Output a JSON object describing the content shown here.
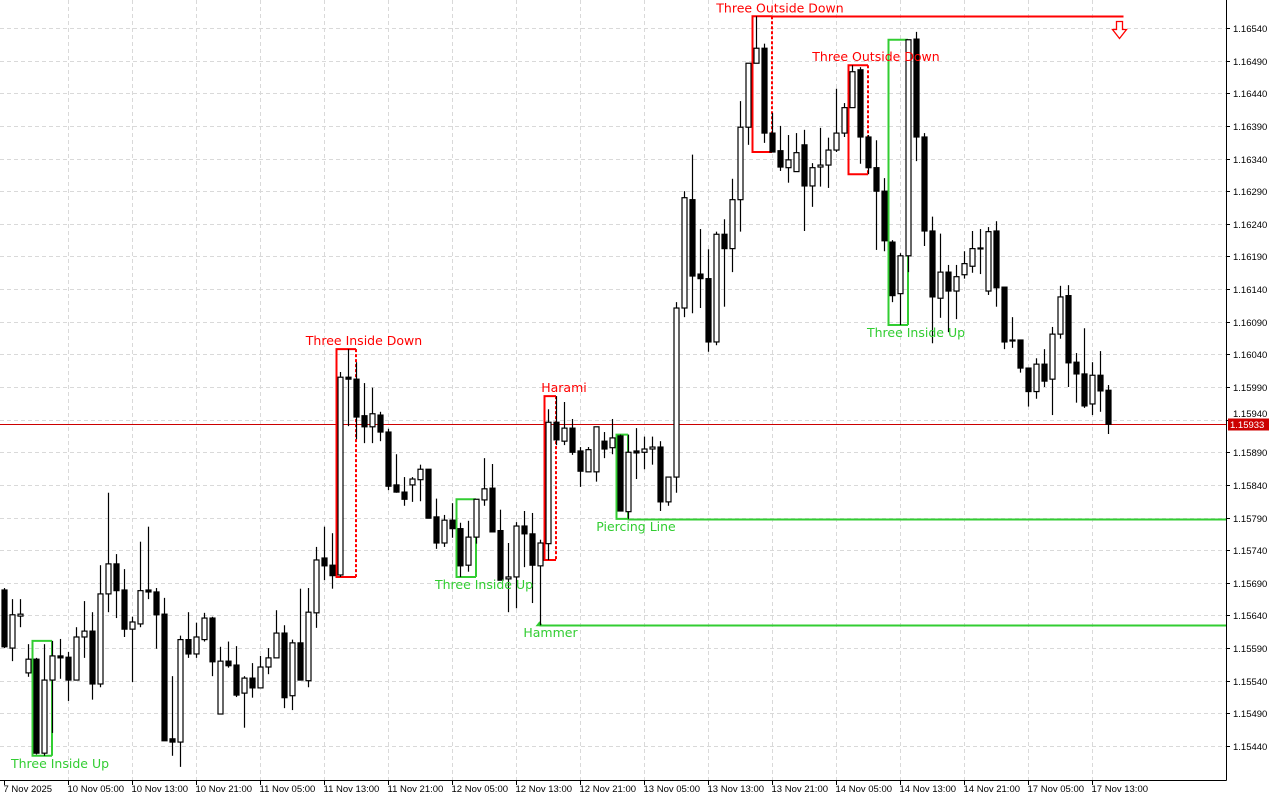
{
  "chart_data": {
    "type": "candlestick",
    "title": "",
    "colors": {
      "bull_body": "#ffffff",
      "bear_body": "#000000",
      "outline": "#000000",
      "grid": "#d9d9d9",
      "bullish_pattern": "#32cd32",
      "bearish_pattern": "#ff0000",
      "price_line": "#cc0000"
    },
    "grid": true,
    "ylim": [
      1.15388,
      1.16583
    ],
    "y_ticks": [
      "1.16540",
      "1.16490",
      "1.16440",
      "1.16390",
      "1.16340",
      "1.16290",
      "1.16240",
      "1.16190",
      "1.16140",
      "1.16090",
      "1.16040",
      "1.15990",
      "1.15940",
      "1.15890",
      "1.15840",
      "1.15790",
      "1.15740",
      "1.15690",
      "1.15640",
      "1.15590",
      "1.15540",
      "1.15490",
      "1.15440"
    ],
    "x_ticks": [
      {
        "index": 0,
        "label": "7 Nov 2025"
      },
      {
        "index": 8,
        "label": "10 Nov 05:00"
      },
      {
        "index": 16,
        "label": "10 Nov 13:00"
      },
      {
        "index": 24,
        "label": "10 Nov 21:00"
      },
      {
        "index": 32,
        "label": "11 Nov 05:00"
      },
      {
        "index": 40,
        "label": "11 Nov 13:00"
      },
      {
        "index": 48,
        "label": "11 Nov 21:00"
      },
      {
        "index": 56,
        "label": "12 Nov 05:00"
      },
      {
        "index": 64,
        "label": "12 Nov 13:00"
      },
      {
        "index": 72,
        "label": "12 Nov 21:00"
      },
      {
        "index": 80,
        "label": "13 Nov 05:00"
      },
      {
        "index": 88,
        "label": "13 Nov 13:00"
      },
      {
        "index": 96,
        "label": "13 Nov 21:00"
      },
      {
        "index": 104,
        "label": "14 Nov 05:00"
      },
      {
        "index": 112,
        "label": "14 Nov 13:00"
      },
      {
        "index": 120,
        "label": "14 Nov 21:00"
      },
      {
        "index": 128,
        "label": "17 Nov 05:00"
      },
      {
        "index": 136,
        "label": "17 Nov 13:00"
      }
    ],
    "current_price": "1.15933",
    "ohlc_fields": [
      "open",
      "high",
      "low",
      "close"
    ],
    "ohlc": [
      [
        1.15679,
        1.15682,
        1.1559,
        1.15592
      ],
      [
        1.1559,
        1.15665,
        1.1557,
        1.15641
      ],
      [
        1.15639,
        1.15665,
        1.15622,
        1.15642
      ],
      [
        1.15552,
        1.15596,
        1.15546,
        1.15573
      ],
      [
        1.15573,
        1.15575,
        1.15427,
        1.15429
      ],
      [
        1.15429,
        1.15596,
        1.15425,
        1.15541
      ],
      [
        1.15541,
        1.15601,
        1.1546,
        1.15578
      ],
      [
        1.15578,
        1.15604,
        1.15543,
        1.15575
      ],
      [
        1.15576,
        1.15584,
        1.15509,
        1.15541
      ],
      [
        1.15541,
        1.15622,
        1.15541,
        1.15607
      ],
      [
        1.15607,
        1.15662,
        1.15575,
        1.15616
      ],
      [
        1.15616,
        1.15645,
        1.15511,
        1.15535
      ],
      [
        1.15535,
        1.15717,
        1.1553,
        1.15673
      ],
      [
        1.15673,
        1.15828,
        1.15645,
        1.15719
      ],
      [
        1.15719,
        1.15734,
        1.15636,
        1.15678
      ],
      [
        1.15679,
        1.15711,
        1.15607,
        1.15619
      ],
      [
        1.15619,
        1.15638,
        1.15538,
        1.1563
      ],
      [
        1.15627,
        1.15753,
        1.15622,
        1.15678
      ],
      [
        1.15679,
        1.15776,
        1.15665,
        1.15676
      ],
      [
        1.15676,
        1.15682,
        1.15589,
        1.15641
      ],
      [
        1.15642,
        1.15667,
        1.15448,
        1.15448
      ],
      [
        1.15451,
        1.15547,
        1.15425,
        1.15446
      ],
      [
        1.15446,
        1.15609,
        1.15408,
        1.15603
      ],
      [
        1.15603,
        1.15645,
        1.15575,
        1.15581
      ],
      [
        1.15581,
        1.15629,
        1.15575,
        1.15607
      ],
      [
        1.15603,
        1.15644,
        1.156,
        1.15636
      ],
      [
        1.15636,
        1.15638,
        1.15547,
        1.15569
      ],
      [
        1.15489,
        1.15592,
        1.15489,
        1.1557
      ],
      [
        1.1557,
        1.156,
        1.1556,
        1.15563
      ],
      [
        1.15564,
        1.15593,
        1.15515,
        1.15518
      ],
      [
        1.15521,
        1.15547,
        1.15468,
        1.15544
      ],
      [
        1.15544,
        1.15567,
        1.15514,
        1.15529
      ],
      [
        1.15529,
        1.15578,
        1.15529,
        1.15561
      ],
      [
        1.15561,
        1.1559,
        1.1555,
        1.15575
      ],
      [
        1.15575,
        1.15648,
        1.15575,
        1.15613
      ],
      [
        1.15613,
        1.15625,
        1.15498,
        1.15514
      ],
      [
        1.15517,
        1.15603,
        1.15495,
        1.15598
      ],
      [
        1.15598,
        1.15681,
        1.15541,
        1.15541
      ],
      [
        1.1554,
        1.15682,
        1.1553,
        1.15645
      ],
      [
        1.15644,
        1.15745,
        1.15621,
        1.15725
      ],
      [
        1.15728,
        1.15776,
        1.15694,
        1.15716
      ],
      [
        1.15717,
        1.15766,
        1.15681,
        1.15701
      ],
      [
        1.15702,
        1.16013,
        1.15699,
        1.16005
      ],
      [
        1.16005,
        1.16048,
        1.1593,
        1.16002
      ],
      [
        1.16002,
        1.16028,
        1.1591,
        1.15944
      ],
      [
        1.15946,
        1.15996,
        1.15904,
        1.15929
      ],
      [
        1.15929,
        1.15989,
        1.15904,
        1.15949
      ],
      [
        1.15947,
        1.15952,
        1.15907,
        1.15921
      ],
      [
        1.15921,
        1.15926,
        1.15832,
        1.15838
      ],
      [
        1.1584,
        1.15887,
        1.15828,
        1.15829
      ],
      [
        1.15829,
        1.15852,
        1.15808,
        1.15818
      ],
      [
        1.1584,
        1.15852,
        1.15814,
        1.15849
      ],
      [
        1.15848,
        1.15871,
        1.15815,
        1.15864
      ],
      [
        1.15864,
        1.15864,
        1.15789,
        1.15789
      ],
      [
        1.15791,
        1.15819,
        1.15742,
        1.15751
      ],
      [
        1.15751,
        1.15794,
        1.15745,
        1.15786
      ],
      [
        1.15786,
        1.15812,
        1.15759,
        1.15773
      ],
      [
        1.15773,
        1.15782,
        1.15699,
        1.15716
      ],
      [
        1.15717,
        1.15785,
        1.15707,
        1.1576
      ],
      [
        1.1576,
        1.15818,
        1.1575,
        1.15818
      ],
      [
        1.15817,
        1.15881,
        1.15808,
        1.15834
      ],
      [
        1.15835,
        1.15872,
        1.15768,
        1.15768
      ],
      [
        1.1577,
        1.15802,
        1.15694,
        1.15694
      ],
      [
        1.15696,
        1.15751,
        1.15645,
        1.15699
      ],
      [
        1.15699,
        1.15783,
        1.15651,
        1.15777
      ],
      [
        1.15777,
        1.158,
        1.15714,
        1.15765
      ],
      [
        1.15765,
        1.15797,
        1.15659,
        1.15717
      ],
      [
        1.15716,
        1.15756,
        1.15625,
        1.15751
      ],
      [
        1.1575,
        1.15956,
        1.15725,
        1.15936
      ],
      [
        1.15936,
        1.15976,
        1.15901,
        1.15909
      ],
      [
        1.15907,
        1.15967,
        1.15901,
        1.15927
      ],
      [
        1.15927,
        1.15941,
        1.15886,
        1.1589
      ],
      [
        1.15892,
        1.15898,
        1.15837,
        1.15861
      ],
      [
        1.1586,
        1.15898,
        1.1586,
        1.15894
      ],
      [
        1.1586,
        1.15929,
        1.15845,
        1.15929
      ],
      [
        1.15907,
        1.15921,
        1.15881,
        1.15895
      ],
      [
        1.15897,
        1.15941,
        1.15887,
        1.15912
      ],
      [
        1.15915,
        1.15917,
        1.158,
        1.158
      ],
      [
        1.15799,
        1.15917,
        1.15788,
        1.1589
      ],
      [
        1.15892,
        1.15927,
        1.15849,
        1.15889
      ],
      [
        1.1589,
        1.15914,
        1.15864,
        1.15895
      ],
      [
        1.15895,
        1.15914,
        1.15871,
        1.15898
      ],
      [
        1.15898,
        1.15907,
        1.158,
        1.15814
      ],
      [
        1.15814,
        1.15852,
        1.15808,
        1.15852
      ],
      [
        1.15852,
        1.1612,
        1.15828,
        1.16111
      ],
      [
        1.16111,
        1.1629,
        1.16097,
        1.1628
      ],
      [
        1.16277,
        1.16346,
        1.16103,
        1.1616
      ],
      [
        1.16163,
        1.16232,
        1.16111,
        1.16156
      ],
      [
        1.16156,
        1.16201,
        1.16044,
        1.16059
      ],
      [
        1.16059,
        1.16228,
        1.16054,
        1.16224
      ],
      [
        1.16224,
        1.16247,
        1.16113,
        1.16202
      ],
      [
        1.16202,
        1.16309,
        1.16166,
        1.16277
      ],
      [
        1.16277,
        1.16428,
        1.16228,
        1.16388
      ],
      [
        1.16388,
        1.16486,
        1.16361,
        1.16486
      ],
      [
        1.16486,
        1.16558,
        1.16486,
        1.16509
      ],
      [
        1.16509,
        1.16516,
        1.16364,
        1.16379
      ],
      [
        1.16379,
        1.1641,
        1.1635,
        1.1635
      ],
      [
        1.16352,
        1.1639,
        1.16321,
        1.16327
      ],
      [
        1.16326,
        1.16376,
        1.16303,
        1.16338
      ],
      [
        1.1632,
        1.16379,
        1.1632,
        1.16349
      ],
      [
        1.16361,
        1.16384,
        1.16229,
        1.16298
      ],
      [
        1.16298,
        1.16333,
        1.16266,
        1.16326
      ],
      [
        1.16327,
        1.16387,
        1.16297,
        1.1633
      ],
      [
        1.1633,
        1.16372,
        1.16295,
        1.16353
      ],
      [
        1.16353,
        1.16447,
        1.1635,
        1.16379
      ],
      [
        1.16379,
        1.16425,
        1.16373,
        1.16418
      ],
      [
        1.16418,
        1.16483,
        1.16418,
        1.16473
      ],
      [
        1.16476,
        1.1648,
        1.16332,
        1.16373
      ],
      [
        1.16373,
        1.16376,
        1.16316,
        1.16326
      ],
      [
        1.16326,
        1.16368,
        1.162,
        1.1629
      ],
      [
        1.1629,
        1.1631,
        1.16198,
        1.16214
      ],
      [
        1.16212,
        1.16215,
        1.1612,
        1.1613
      ],
      [
        1.16133,
        1.16195,
        1.16085,
        1.16191
      ],
      [
        1.16191,
        1.16522,
        1.16166,
        1.16522
      ],
      [
        1.16523,
        1.16534,
        1.16336,
        1.16373
      ],
      [
        1.16373,
        1.16379,
        1.16206,
        1.16229
      ],
      [
        1.16229,
        1.16251,
        1.16057,
        1.16128
      ],
      [
        1.16126,
        1.16225,
        1.16096,
        1.16166
      ],
      [
        1.16166,
        1.16177,
        1.16074,
        1.16137
      ],
      [
        1.16137,
        1.16177,
        1.16094,
        1.16159
      ],
      [
        1.16162,
        1.16198,
        1.16156,
        1.16179
      ],
      [
        1.16175,
        1.16229,
        1.16165,
        1.16202
      ],
      [
        1.16202,
        1.16232,
        1.16163,
        1.16203
      ],
      [
        1.16137,
        1.16235,
        1.16131,
        1.16228
      ],
      [
        1.16229,
        1.16244,
        1.16113,
        1.16142
      ],
      [
        1.16143,
        1.16143,
        1.16048,
        1.16059
      ],
      [
        1.16062,
        1.16097,
        1.1605,
        1.16061
      ],
      [
        1.16062,
        1.16062,
        1.16012,
        1.16019
      ],
      [
        1.16019,
        1.16019,
        1.1596,
        1.15983
      ],
      [
        1.15983,
        1.16034,
        1.15972,
        1.16025
      ],
      [
        1.16025,
        1.16048,
        1.1599,
        1.15999
      ],
      [
        1.16002,
        1.16082,
        1.15947,
        1.16071
      ],
      [
        1.16071,
        1.16145,
        1.16064,
        1.16128
      ],
      [
        1.1613,
        1.16146,
        1.1599,
        1.16027
      ],
      [
        1.16028,
        1.16042,
        1.15966,
        1.1601
      ],
      [
        1.1601,
        1.1608,
        1.15958,
        1.15961
      ],
      [
        1.15964,
        1.16028,
        1.15947,
        1.16008
      ],
      [
        1.16008,
        1.16045,
        1.15952,
        1.15984
      ],
      [
        1.15985,
        1.15993,
        1.15918,
        1.15933
      ]
    ],
    "annotations": [
      {
        "label": "Three Inside Up",
        "type": "bullish",
        "start": 4,
        "end": 6
      },
      {
        "label": "Three Inside Down",
        "type": "bearish",
        "start": 42,
        "end": 44
      },
      {
        "label": "Three Inside Up",
        "type": "bullish",
        "start": 57,
        "end": 59
      },
      {
        "label": "Hammer",
        "type": "bullish",
        "start": 67,
        "end": 67,
        "marker": "up-arrow",
        "level": 1.15626
      },
      {
        "label": "Harami",
        "type": "bearish",
        "start": 68,
        "end": 69
      },
      {
        "label": "Piercing Line",
        "type": "bullish",
        "start": 77,
        "end": 78,
        "level": 1.15788
      },
      {
        "label": "Three Outside Down",
        "type": "bearish",
        "start": 94,
        "end": 96,
        "level": 1.16558,
        "level_end": 140,
        "signal": "down-arrow"
      },
      {
        "label": "Three Outside Down",
        "type": "bearish",
        "start": 106,
        "end": 108
      },
      {
        "label": "Three Inside Up",
        "type": "bullish",
        "start": 111,
        "end": 113
      }
    ]
  }
}
